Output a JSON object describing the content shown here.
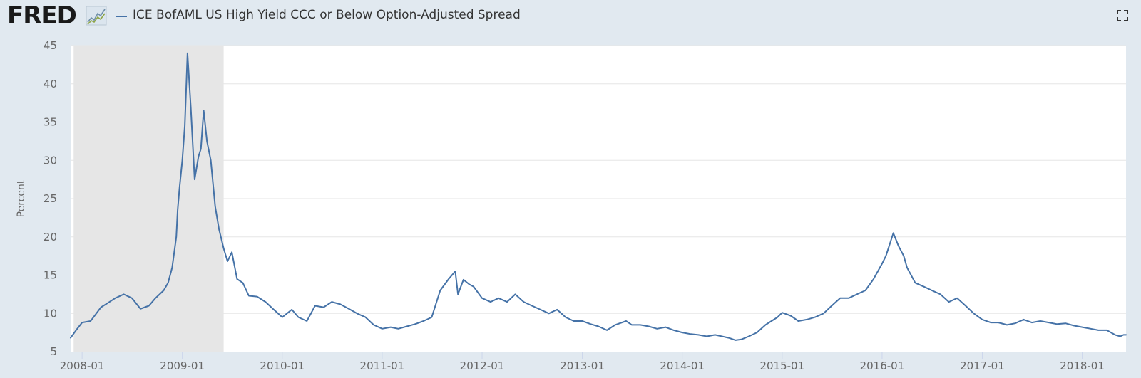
{
  "header": {
    "logo_text": "FRED",
    "series_title": "ICE BofAML US High Yield CCC or Below Option-Adjusted Spread"
  },
  "icons": {
    "logo_graph": "fred-graph-icon",
    "fullscreen": "fullscreen-icon"
  },
  "colors": {
    "series": "#4572a7",
    "recession": "#e6e6e6",
    "page_background": "#e1e9f0",
    "plot_background": "#ffffff",
    "grid": "#e6e6e6"
  },
  "chart_data": {
    "type": "line",
    "ylabel": "Percent",
    "xlabel": "",
    "ylim": [
      5,
      45
    ],
    "yticks": [
      5,
      10,
      15,
      20,
      25,
      30,
      35,
      40,
      45
    ],
    "xlim": [
      "2007-11-20",
      "2018-06-10"
    ],
    "xticks": [
      "2008-01",
      "2009-01",
      "2010-01",
      "2011-01",
      "2012-01",
      "2013-01",
      "2014-01",
      "2015-01",
      "2016-01",
      "2017-01",
      "2018-01"
    ],
    "grid": true,
    "recession_shading": [
      {
        "start": "2007-12-01",
        "end": "2009-06-01"
      }
    ],
    "series": [
      {
        "name": "ICE BofAML US High Yield CCC or Below Option-Adjusted Spread",
        "x": [
          "2007-11-20",
          "2007-12-10",
          "2008-01-01",
          "2008-02-01",
          "2008-03-10",
          "2008-04-01",
          "2008-05-01",
          "2008-06-01",
          "2008-07-01",
          "2008-08-01",
          "2008-09-01",
          "2008-09-25",
          "2008-10-10",
          "2008-10-25",
          "2008-11-10",
          "2008-11-25",
          "2008-12-10",
          "2008-12-15",
          "2008-12-22",
          "2009-01-01",
          "2009-01-10",
          "2009-01-20",
          "2009-02-01",
          "2009-02-15",
          "2009-03-01",
          "2009-03-10",
          "2009-03-20",
          "2009-04-01",
          "2009-04-15",
          "2009-05-01",
          "2009-05-15",
          "2009-06-01",
          "2009-06-15",
          "2009-07-01",
          "2009-07-20",
          "2009-08-10",
          "2009-09-01",
          "2009-10-01",
          "2009-11-01",
          "2009-12-01",
          "2010-01-01",
          "2010-02-05",
          "2010-03-01",
          "2010-04-01",
          "2010-05-01",
          "2010-06-01",
          "2010-07-01",
          "2010-08-01",
          "2010-09-01",
          "2010-10-01",
          "2010-11-01",
          "2010-12-01",
          "2011-01-01",
          "2011-02-01",
          "2011-03-01",
          "2011-04-01",
          "2011-05-01",
          "2011-06-01",
          "2011-07-01",
          "2011-08-01",
          "2011-09-01",
          "2011-09-25",
          "2011-10-05",
          "2011-10-25",
          "2011-11-15",
          "2011-12-01",
          "2012-01-01",
          "2012-02-01",
          "2012-03-01",
          "2012-04-01",
          "2012-05-01",
          "2012-06-01",
          "2012-07-01",
          "2012-08-01",
          "2012-09-01",
          "2012-10-01",
          "2012-11-01",
          "2012-12-01",
          "2013-01-01",
          "2013-02-01",
          "2013-03-01",
          "2013-04-01",
          "2013-05-01",
          "2013-06-10",
          "2013-07-01",
          "2013-08-01",
          "2013-09-01",
          "2013-10-01",
          "2013-11-01",
          "2013-12-01",
          "2014-01-01",
          "2014-02-01",
          "2014-03-01",
          "2014-04-01",
          "2014-05-01",
          "2014-06-20",
          "2014-07-15",
          "2014-08-05",
          "2014-09-01",
          "2014-10-01",
          "2014-11-01",
          "2014-12-15",
          "2015-01-01",
          "2015-02-01",
          "2015-03-01",
          "2015-04-01",
          "2015-05-01",
          "2015-06-01",
          "2015-07-01",
          "2015-08-01",
          "2015-09-01",
          "2015-10-01",
          "2015-11-01",
          "2015-12-01",
          "2016-01-01",
          "2016-01-15",
          "2016-02-11",
          "2016-03-01",
          "2016-03-20",
          "2016-04-01",
          "2016-05-01",
          "2016-06-01",
          "2016-07-01",
          "2016-08-01",
          "2016-09-01",
          "2016-10-01",
          "2016-11-01",
          "2016-12-01",
          "2017-01-01",
          "2017-02-01",
          "2017-03-01",
          "2017-04-01",
          "2017-05-01",
          "2017-06-01",
          "2017-07-01",
          "2017-08-01",
          "2017-09-01",
          "2017-10-01",
          "2017-11-01",
          "2017-12-01",
          "2018-01-01",
          "2018-02-01",
          "2018-03-01",
          "2018-04-01",
          "2018-05-01",
          "2018-05-20",
          "2018-06-01",
          "2018-06-10"
        ],
        "values": [
          6.8,
          7.8,
          8.8,
          9.0,
          10.8,
          11.3,
          12.0,
          12.5,
          12.0,
          10.6,
          11.0,
          12.0,
          12.5,
          13.0,
          14.0,
          16.0,
          20.0,
          23.5,
          26.5,
          30.0,
          34.5,
          44.0,
          37.0,
          27.5,
          30.5,
          31.5,
          36.5,
          32.5,
          30.0,
          24.0,
          21.0,
          18.5,
          16.8,
          18.0,
          14.5,
          14.0,
          12.3,
          12.2,
          11.5,
          10.5,
          9.5,
          10.5,
          9.5,
          9.0,
          11.0,
          10.8,
          11.5,
          11.2,
          10.6,
          10.0,
          9.5,
          8.5,
          8.0,
          8.2,
          8.0,
          8.3,
          8.6,
          9.0,
          9.5,
          13.0,
          14.5,
          15.5,
          12.5,
          14.4,
          13.8,
          13.5,
          12.0,
          11.5,
          12.0,
          11.5,
          12.5,
          11.5,
          11.0,
          10.5,
          10.0,
          10.5,
          9.5,
          9.0,
          9.0,
          8.6,
          8.3,
          7.8,
          8.5,
          9.0,
          8.5,
          8.5,
          8.3,
          8.0,
          8.2,
          7.8,
          7.5,
          7.3,
          7.2,
          7.0,
          7.2,
          6.8,
          6.5,
          6.6,
          7.0,
          7.5,
          8.5,
          9.5,
          10.1,
          9.7,
          9.0,
          9.2,
          9.5,
          10.0,
          11.0,
          12.0,
          12.0,
          12.5,
          13.0,
          14.5,
          16.5,
          17.5,
          20.5,
          18.8,
          17.5,
          16.0,
          14.0,
          13.5,
          13.0,
          12.5,
          11.5,
          12.0,
          11.0,
          10.0,
          9.2,
          8.8,
          8.8,
          8.5,
          8.7,
          9.2,
          8.8,
          9.0,
          8.8,
          8.6,
          8.7,
          8.4,
          8.2,
          8.0,
          7.8,
          7.8,
          7.2,
          7.0,
          7.2,
          7.2
        ]
      }
    ]
  }
}
